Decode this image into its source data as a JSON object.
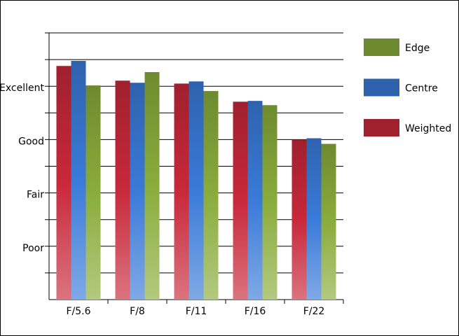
{
  "chart_data": {
    "type": "bar",
    "categories": [
      "F/5.6",
      "F/8",
      "F/11",
      "F/16",
      "F/22"
    ],
    "series": [
      {
        "name": "Weighted",
        "color": "#c8283a",
        "values": [
          8.76,
          8.21,
          8.1,
          7.42,
          6.0
        ]
      },
      {
        "name": "Centre",
        "color": "#3a7ad8",
        "values": [
          8.95,
          8.13,
          8.18,
          7.45,
          6.05
        ]
      },
      {
        "name": "Edge",
        "color": "#8aac3c",
        "values": [
          8.03,
          8.53,
          7.82,
          7.29,
          5.84
        ]
      }
    ],
    "ylim": [
      0,
      10
    ],
    "yticks": [
      {
        "value": 2,
        "label": "Poor"
      },
      {
        "value": 4,
        "label": "Fair"
      },
      {
        "value": 6,
        "label": "Good"
      },
      {
        "value": 8,
        "label": "Excellent"
      }
    ],
    "minor_yticks": [
      1,
      3,
      5,
      7,
      9,
      10
    ],
    "grid": true
  }
}
